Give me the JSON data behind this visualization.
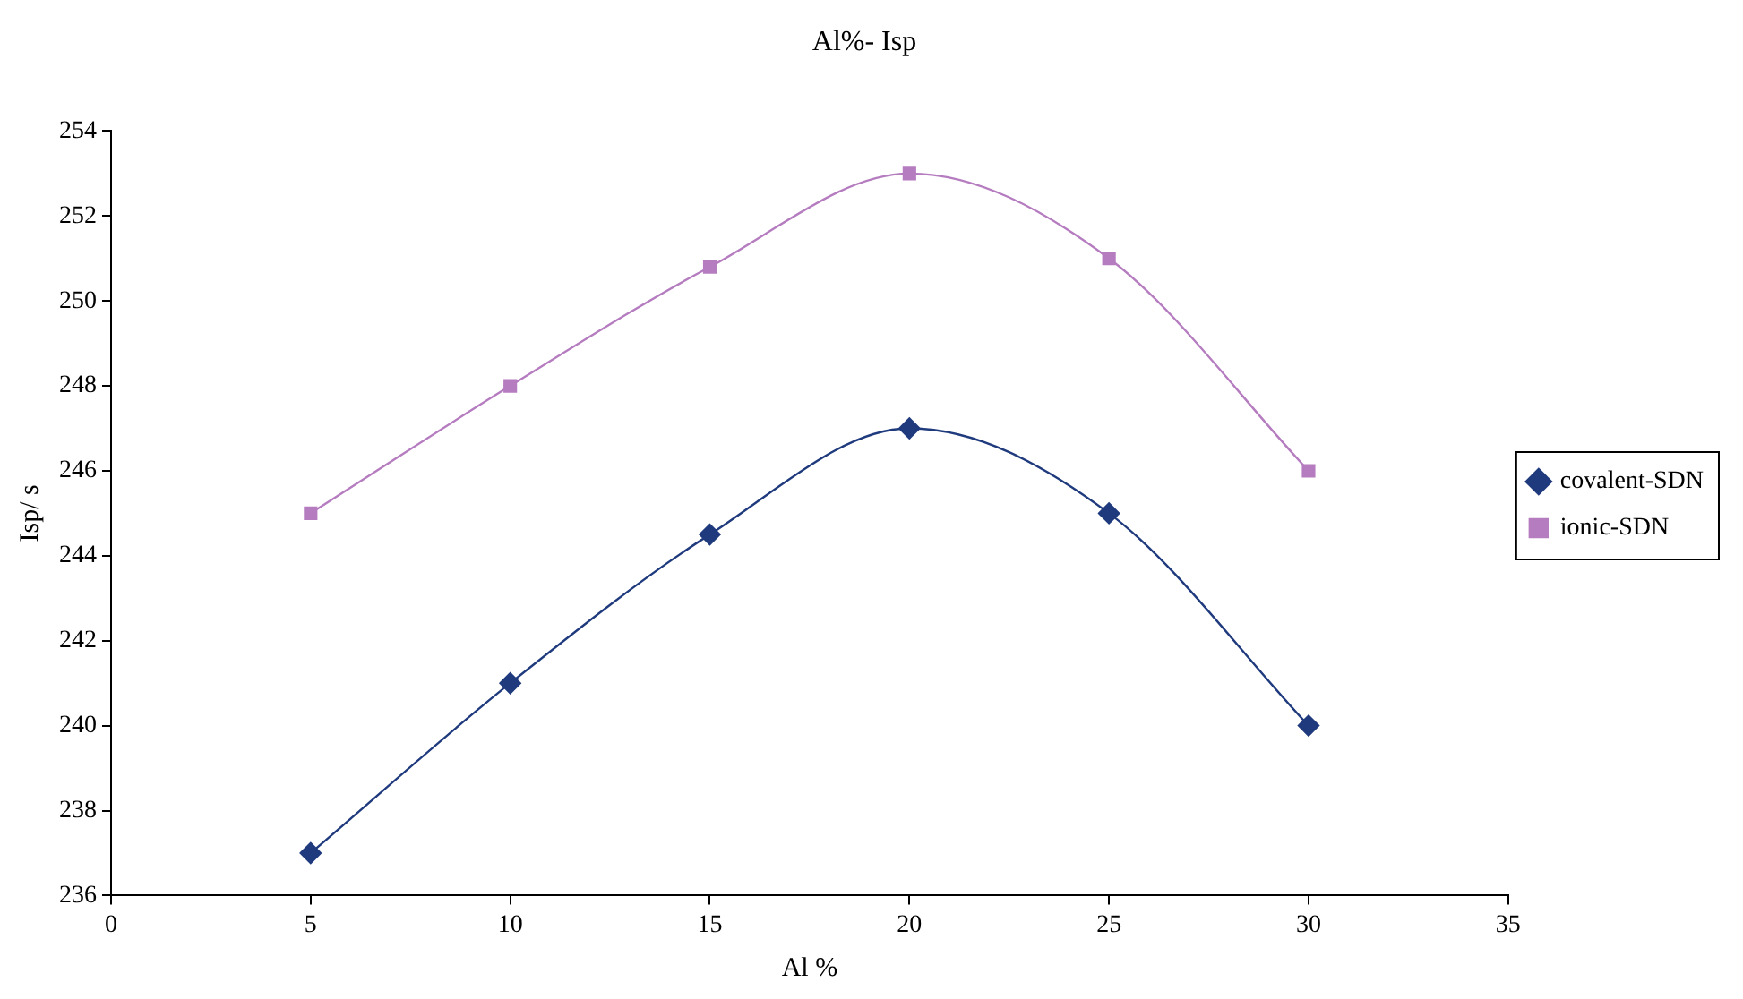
{
  "chart_data": {
    "type": "line",
    "title": "Al%- Isp",
    "xlabel": "Al %",
    "ylabel": "Isp/ s",
    "x": [
      5,
      10,
      15,
      20,
      25,
      30
    ],
    "series": [
      {
        "name": "covalent-SDN",
        "color": "#1f3a7d",
        "marker": "diamond",
        "values": [
          237,
          241,
          244.5,
          247,
          245,
          240
        ]
      },
      {
        "name": "ionic-SDN",
        "color": "#b57cc0",
        "marker": "square",
        "values": [
          245,
          248,
          250.8,
          253,
          251,
          246
        ]
      }
    ],
    "xlim": [
      0,
      35
    ],
    "xticks": [
      0,
      5,
      10,
      15,
      20,
      25,
      30,
      35
    ],
    "ylim": [
      236,
      254
    ],
    "yticks": [
      236,
      238,
      240,
      242,
      244,
      246,
      248,
      250,
      252,
      254
    ],
    "grid": false,
    "legend": "right",
    "line_style": "solid"
  }
}
